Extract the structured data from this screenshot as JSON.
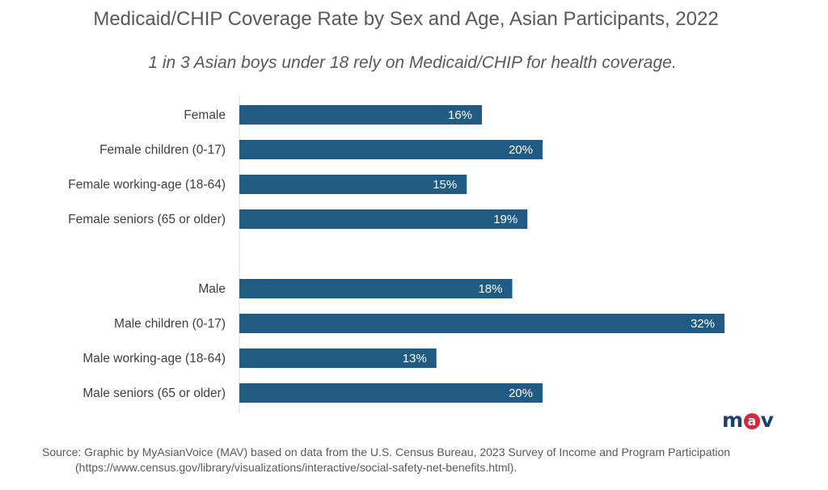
{
  "title": "Medicaid/CHIP Coverage Rate by Sex and Age, Asian Participants, 2022",
  "subtitle": "1 in 3 Asian boys under 18 rely on Medicaid/CHIP for health coverage.",
  "logo": {
    "left": "m",
    "middle": "a",
    "right": "v"
  },
  "source": {
    "line1": "Source: Graphic by MyAsianVoice (MAV) based on data from the U.S. Census Bureau, 2023 Survey of Income and Program Participation",
    "line2": "(https://www.census.gov/library/visualizations/interactive/social-safety-net-benefits.html)."
  },
  "colors": {
    "bar": "#1f5b82",
    "axis": "#d9d9d9"
  },
  "chart_data": {
    "type": "bar",
    "orientation": "horizontal",
    "categories": [
      "Female",
      "Female children (0-17)",
      "Female working-age (18-64)",
      "Female seniors (65 or older)",
      "",
      "Male",
      "Male children (0-17)",
      "Male working-age (18-64)",
      "Male seniors (65 or older)"
    ],
    "values": [
      16,
      20,
      15,
      19,
      null,
      18,
      32,
      13,
      20
    ],
    "labels": [
      "16%",
      "20%",
      "15%",
      "19%",
      "",
      "18%",
      "32%",
      "13%",
      "20%"
    ],
    "unit": "%",
    "xlim": [
      0,
      35
    ],
    "grid": false,
    "legend": "none"
  }
}
